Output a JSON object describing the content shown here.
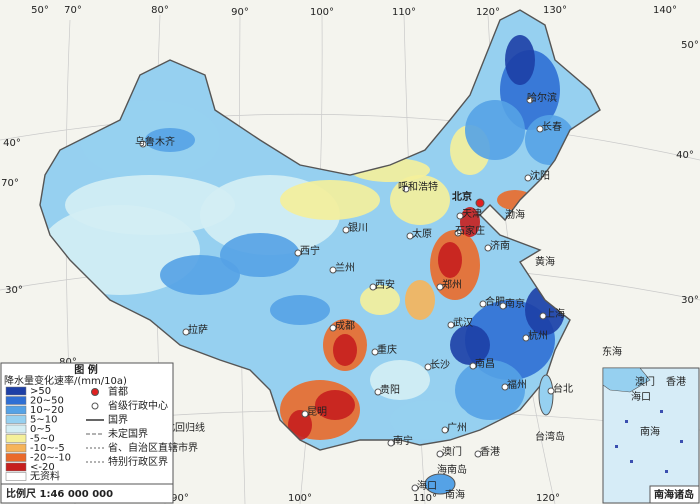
{
  "graticule": {
    "labels": [
      "50°",
      "70°",
      "80°",
      "90°",
      "100°",
      "110°",
      "120°",
      "130°",
      "140°",
      "40°",
      "70°",
      "30°",
      "80°",
      "50°",
      "40°",
      "30°",
      "90°",
      "100°",
      "110°",
      "120°"
    ]
  },
  "cities": [
    "乌鲁木齐",
    "北京",
    "天津",
    "沈阳",
    "长春",
    "哈尔滨",
    "呼和浩特",
    "银川",
    "太原",
    "石家庄",
    "济南",
    "西宁",
    "兰州",
    "西安",
    "郑州",
    "合肥",
    "南京",
    "上海",
    "武汉",
    "杭州",
    "成都",
    "重庆",
    "拉萨",
    "长沙",
    "南昌",
    "贵阳",
    "福州",
    "台北",
    "昆明",
    "南宁",
    "广州",
    "澳门",
    "香港",
    "海口"
  ],
  "seas": [
    "渤海",
    "黄海",
    "东海",
    "南海",
    "台湾岛",
    "海南岛",
    "北回归线"
  ],
  "legend": {
    "title": "图 例",
    "subtitle": "降水量变化速率/(mm/10a)",
    "classes": [
      {
        "label": ">50",
        "color": "#1d3fa6"
      },
      {
        "label": "20~50",
        "color": "#2f6fd4"
      },
      {
        "label": "10~20",
        "color": "#55a2e6"
      },
      {
        "label": "5~10",
        "color": "#96d0f0"
      },
      {
        "label": "0~5",
        "color": "#d4eef4"
      },
      {
        "label": "-5~0",
        "color": "#f5f09a"
      },
      {
        "label": "-10~-5",
        "color": "#f6b45a"
      },
      {
        "label": "-20~-10",
        "color": "#ea6a2a"
      },
      {
        "label": "<-20",
        "color": "#c61f1e"
      },
      {
        "label": "无资料",
        "color": "#ffffff"
      }
    ],
    "symbols": [
      "首都",
      "省级行政中心",
      "国界",
      "未定国界",
      "省、自治区直辖市界",
      "特别行政区界"
    ]
  },
  "scale": "比例尺  1:46 000 000",
  "inset": {
    "labels": [
      "澳门",
      "香港",
      "海口",
      "南海"
    ],
    "title": "南海诸岛"
  }
}
